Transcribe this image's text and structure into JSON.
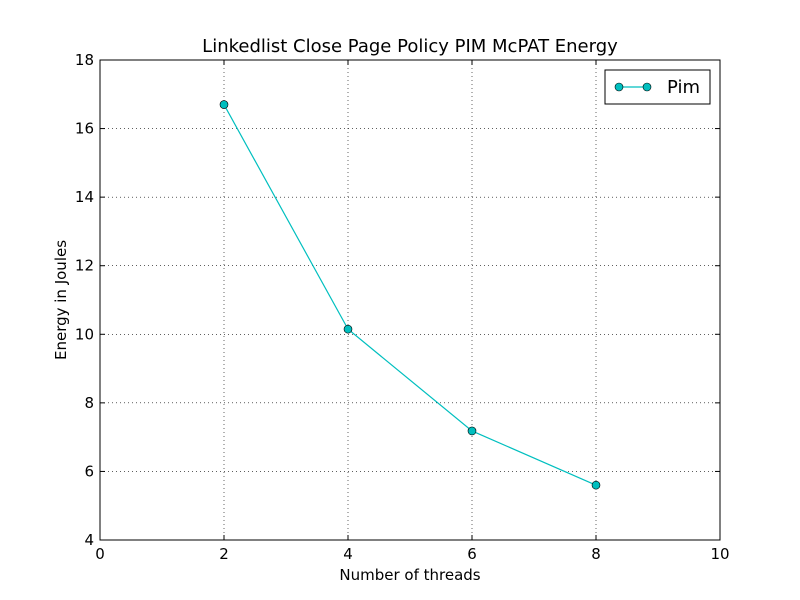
{
  "chart_data": {
    "type": "line",
    "title": "Linkedlist Close Page Policy PIM McPAT Energy",
    "xlabel": "Number of threads",
    "ylabel": "Energy in Joules",
    "xlim": [
      0,
      10
    ],
    "ylim": [
      4,
      18
    ],
    "xticks": [
      0,
      2,
      4,
      6,
      8,
      10
    ],
    "yticks": [
      4,
      6,
      8,
      10,
      12,
      14,
      16,
      18
    ],
    "grid": true,
    "legend_position": "top-right",
    "series": [
      {
        "name": "Pim",
        "color": "#00bfbf",
        "marker": "circle",
        "x": [
          2,
          4,
          6,
          8
        ],
        "y": [
          16.7,
          10.15,
          7.18,
          5.6
        ]
      }
    ]
  }
}
